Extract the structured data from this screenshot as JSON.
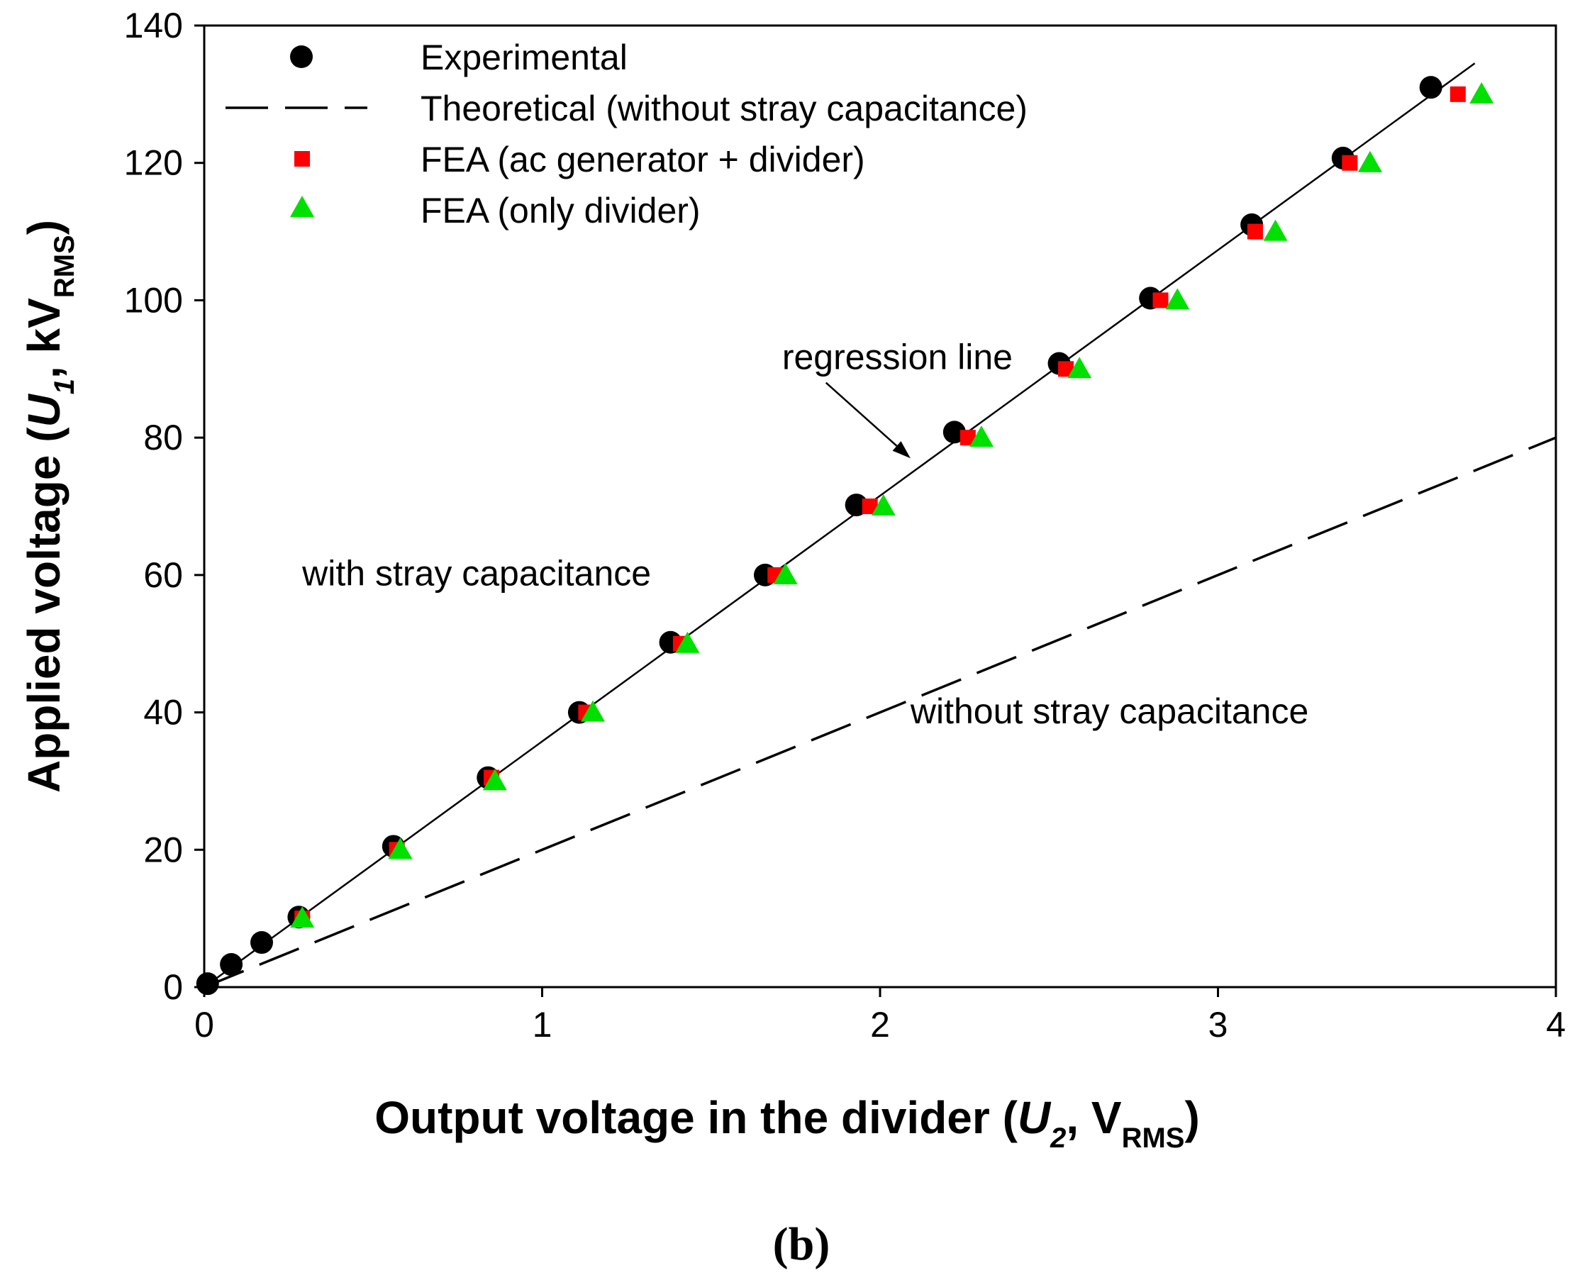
{
  "chart_data": {
    "type": "scatter",
    "panel_label": "(b)",
    "xlabel": {
      "main": "Output voltage in the divider (",
      "var": "U",
      "var_sub": "2",
      "mid": ", V",
      "unit_sub": "RMS",
      "end": ")"
    },
    "ylabel": {
      "main": "Applied voltage (",
      "var": "U",
      "var_sub": "1",
      "mid": ", kV",
      "unit_sub": "RMS",
      "end": ")"
    },
    "xlim": [
      0,
      4
    ],
    "ylim": [
      0,
      140
    ],
    "xticks": [
      "0",
      "1",
      "2",
      "3",
      "4"
    ],
    "yticks": [
      "0",
      "20",
      "40",
      "60",
      "80",
      "100",
      "120",
      "140"
    ],
    "legend_position": "top-left",
    "colors": {
      "experimental": "#000000",
      "fea_gen": "#ff0000",
      "fea_div": "#00e000",
      "lines": "#000000"
    },
    "series": [
      {
        "name": "Experimental",
        "marker": "circle",
        "x": [
          0.01,
          0.08,
          0.17,
          0.28,
          0.56,
          0.84,
          1.11,
          1.38,
          1.66,
          1.93,
          2.22,
          2.53,
          2.8,
          3.1,
          3.37,
          3.63
        ],
        "y": [
          0.5,
          3.3,
          6.5,
          10.2,
          20.5,
          30.5,
          40.0,
          50.2,
          60.0,
          70.2,
          80.8,
          90.8,
          100.3,
          111.0,
          120.7,
          131.0
        ]
      },
      {
        "name": "Theoretical (without stray capacitance)",
        "marker": "dashed-line",
        "x": [
          0,
          4
        ],
        "y": [
          0,
          80
        ]
      },
      {
        "name": "FEA (ac generator + divider)",
        "marker": "square",
        "x": [
          0.29,
          0.57,
          0.85,
          1.13,
          1.41,
          1.69,
          1.97,
          2.26,
          2.55,
          2.83,
          3.11,
          3.39,
          3.71
        ],
        "y": [
          10.0,
          20.0,
          30.5,
          40.0,
          50.0,
          60.0,
          70.0,
          80.0,
          90.0,
          100.0,
          110.0,
          120.0,
          130.0
        ]
      },
      {
        "name": "FEA (only divider)",
        "marker": "triangle",
        "x": [
          0.29,
          0.58,
          0.86,
          1.15,
          1.43,
          1.72,
          2.01,
          2.3,
          2.59,
          2.88,
          3.17,
          3.45,
          3.78
        ],
        "y": [
          10.0,
          20.0,
          30.0,
          40.0,
          50.0,
          60.0,
          70.0,
          80.0,
          90.0,
          100.0,
          110.0,
          120.0,
          130.0
        ]
      }
    ],
    "regression_line": {
      "x": [
        0,
        3.76
      ],
      "y": [
        0,
        134.5
      ]
    },
    "annotations": {
      "regression": {
        "text": "regression line",
        "x": 1.71,
        "y": 90,
        "arrow_from": [
          1.84,
          88
        ],
        "arrow_to": [
          2.09,
          77
        ]
      },
      "with_stray": {
        "text": "with stray capacitance",
        "x": 0.29,
        "y": 58.5
      },
      "without_stray": {
        "text": "without stray capacitance",
        "x": 2.09,
        "y": 38.4
      }
    }
  }
}
